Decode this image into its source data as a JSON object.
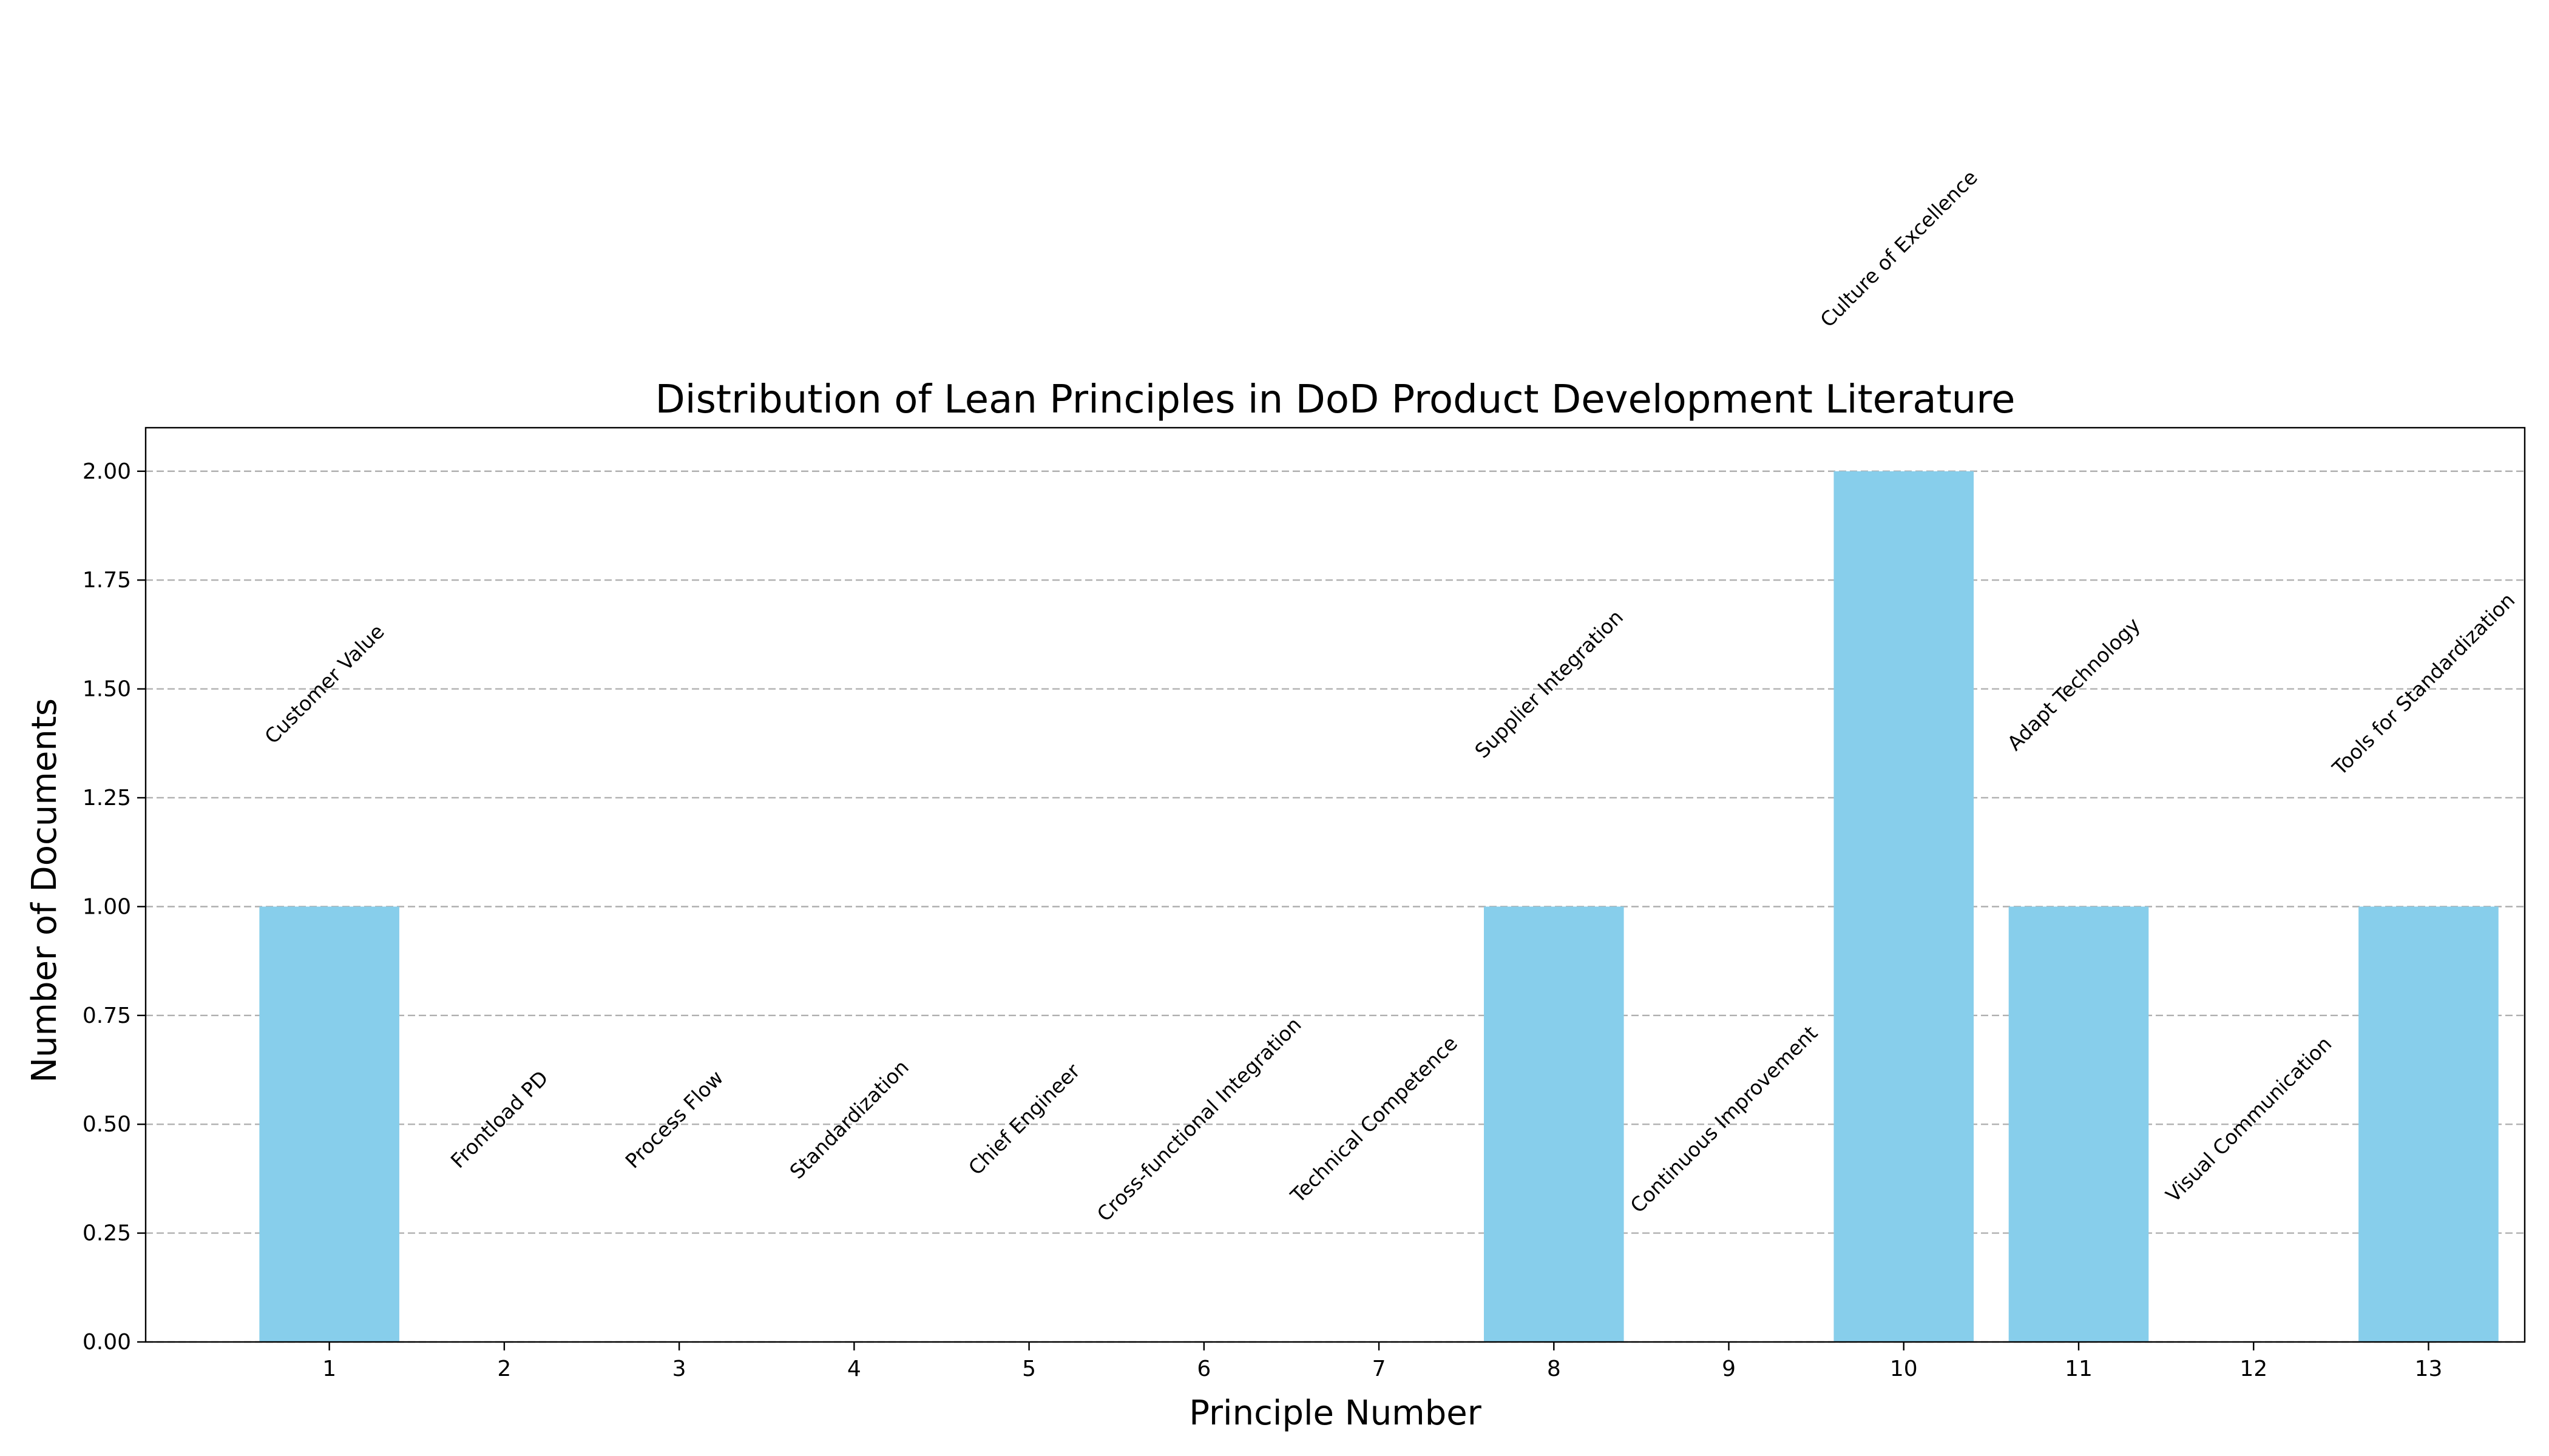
{
  "chart_data": {
    "type": "bar",
    "title": "Distribution of Lean Principles in DoD Product Development Literature",
    "xlabel": "Principle Number",
    "ylabel": "Number of Documents",
    "categories": [
      "1",
      "2",
      "3",
      "4",
      "5",
      "6",
      "7",
      "8",
      "9",
      "10",
      "11",
      "12",
      "13"
    ],
    "values": [
      1,
      0,
      0,
      0,
      0,
      0,
      0,
      1,
      0,
      2,
      1,
      0,
      1
    ],
    "principle_names": [
      "Customer Value",
      "Frontload PD",
      "Process Flow",
      "Standardization",
      "Chief Engineer",
      "Cross-functional Integration",
      "Technical Competence",
      "Supplier Integration",
      "Continuous Improvement",
      "Culture of Excellence",
      "Adapt Technology",
      "Visual Communication",
      "Tools for Standardization"
    ],
    "ylim": [
      0,
      2.1
    ],
    "yticks": [
      "0.00",
      "0.25",
      "0.50",
      "0.75",
      "1.00",
      "1.25",
      "1.50",
      "1.75",
      "2.00"
    ],
    "grid": "y-dashed",
    "bar_color": "#87CEEB"
  }
}
